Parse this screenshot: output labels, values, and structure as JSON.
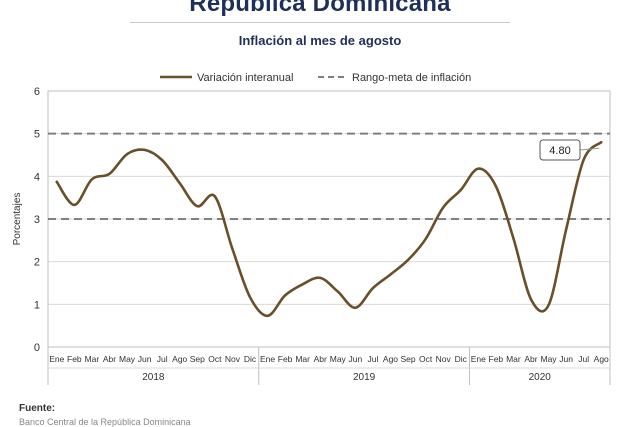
{
  "header": {
    "title": "República Dominicana",
    "subtitle": "Inflación al mes de agosto"
  },
  "footer": {
    "source_label": "Fuente:",
    "source_text": "Banco Central de la República Dominicana"
  },
  "chart_data": {
    "type": "line",
    "ylabel": "Porcentajes",
    "ylim": [
      0,
      6
    ],
    "yticks": [
      "0",
      "1",
      "2",
      "3",
      "4",
      "5",
      "6"
    ],
    "grid": true,
    "legend_position": "top",
    "month_labels": [
      "Ene",
      "Feb",
      "Mar",
      "Abr",
      "May",
      "Jun",
      "Jul",
      "Ago",
      "Sep",
      "Oct",
      "Nov",
      "Dic",
      "Ene",
      "Feb",
      "Mar",
      "Abr",
      "May",
      "Jun",
      "Jul",
      "Ago",
      "Sep",
      "Oct",
      "Nov",
      "Dic",
      "Ene",
      "Feb",
      "Mar",
      "Abr",
      "May",
      "Jun",
      "Jul",
      "Ago"
    ],
    "year_groups": [
      {
        "label": "2018",
        "start": 0,
        "end": 11
      },
      {
        "label": "2019",
        "start": 12,
        "end": 23
      },
      {
        "label": "2020",
        "start": 24,
        "end": 31
      }
    ],
    "series": [
      {
        "name": "Variación interanual",
        "color": "#6b4f2a",
        "style": "solid",
        "values": [
          3.87,
          3.33,
          3.93,
          4.06,
          4.52,
          4.62,
          4.38,
          3.84,
          3.3,
          3.53,
          2.3,
          1.17,
          0.73,
          1.21,
          1.47,
          1.62,
          1.3,
          0.92,
          1.38,
          1.7,
          2.04,
          2.53,
          3.27,
          3.68,
          4.18,
          3.77,
          2.55,
          1.12,
          0.98,
          2.75,
          4.39,
          4.8
        ]
      },
      {
        "name": "Rango-meta de inflación",
        "color": "#808080",
        "style": "dashed",
        "bounds": [
          3,
          5
        ]
      }
    ],
    "annotation": {
      "text": "4.80",
      "index": 31
    }
  }
}
